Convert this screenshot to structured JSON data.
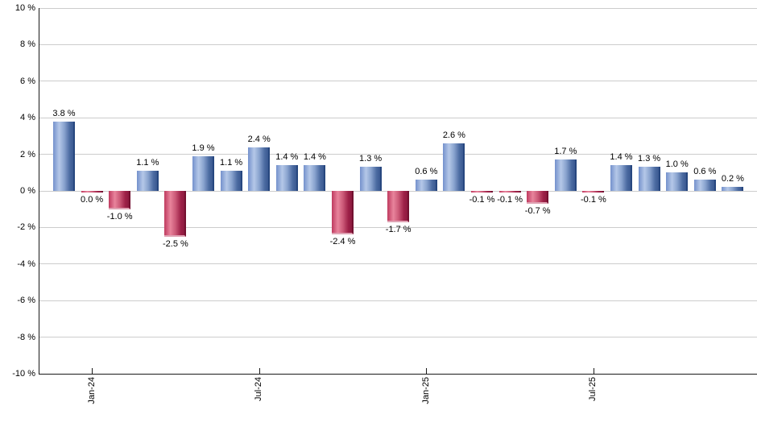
{
  "chart_data": {
    "type": "bar",
    "title": "",
    "unit": "%",
    "values": [
      3.8,
      0.0,
      -1.0,
      1.1,
      -2.5,
      1.9,
      1.1,
      2.4,
      1.4,
      1.4,
      -2.4,
      1.3,
      -1.7,
      0.6,
      2.6,
      -0.1,
      -0.1,
      -0.7,
      1.7,
      -0.1,
      1.4,
      1.3,
      1.0,
      0.6,
      0.2
    ],
    "bar_labels": [
      "3.8 %",
      "0.0 %",
      "-1.0 %",
      "1.1 %",
      "-2.5 %",
      "1.9 %",
      "1.1 %",
      "2.4 %",
      "1.4 %",
      "1.4 %",
      "-2.4 %",
      "1.3 %",
      "-1.7 %",
      "0.6 %",
      "2.6 %",
      "-0.1 %",
      "-0.1 %",
      "-0.7 %",
      "1.7 %",
      "-0.1 %",
      "1.4 %",
      "1.3 %",
      "1.0 %",
      "0.6 %",
      "0.2 %"
    ],
    "x_ticks": [
      {
        "index": 1,
        "label": "Jan-24"
      },
      {
        "index": 7,
        "label": "Jul-24"
      },
      {
        "index": 13,
        "label": "Jan-25"
      },
      {
        "index": 19,
        "label": "Jul-25"
      }
    ],
    "y_ticks": [
      {
        "value": 10,
        "label": "10 %"
      },
      {
        "value": 8,
        "label": "8 %"
      },
      {
        "value": 6,
        "label": "6 %"
      },
      {
        "value": 4,
        "label": "4 %"
      },
      {
        "value": 2,
        "label": "2 %"
      },
      {
        "value": 0,
        "label": "0 %"
      },
      {
        "value": -2,
        "label": "-2 %"
      },
      {
        "value": -4,
        "label": "-4 %"
      },
      {
        "value": -6,
        "label": "-6 %"
      },
      {
        "value": -8,
        "label": "-8 %"
      },
      {
        "value": -10,
        "label": "-10 %"
      }
    ],
    "ylim": [
      -10,
      10
    ],
    "grid": true,
    "legend": "none",
    "colors": {
      "background": "#ffffff",
      "gridline": "#cccccc",
      "axis": "#1a1a1a",
      "label_text": "#000000",
      "positive_gradient": [
        "#7491cc",
        "#b5c8e8",
        "#8aa4cf",
        "#4c6ba2",
        "#3a5991"
      ],
      "positive_border": "#27477f",
      "negative_gradient": [
        "#bf3a5f",
        "#e8849c",
        "#cc5a78",
        "#9e2148",
        "#8c1a3e"
      ],
      "negative_border": "#731030",
      "negative_bottom_cap": "#dfa3b4"
    }
  }
}
